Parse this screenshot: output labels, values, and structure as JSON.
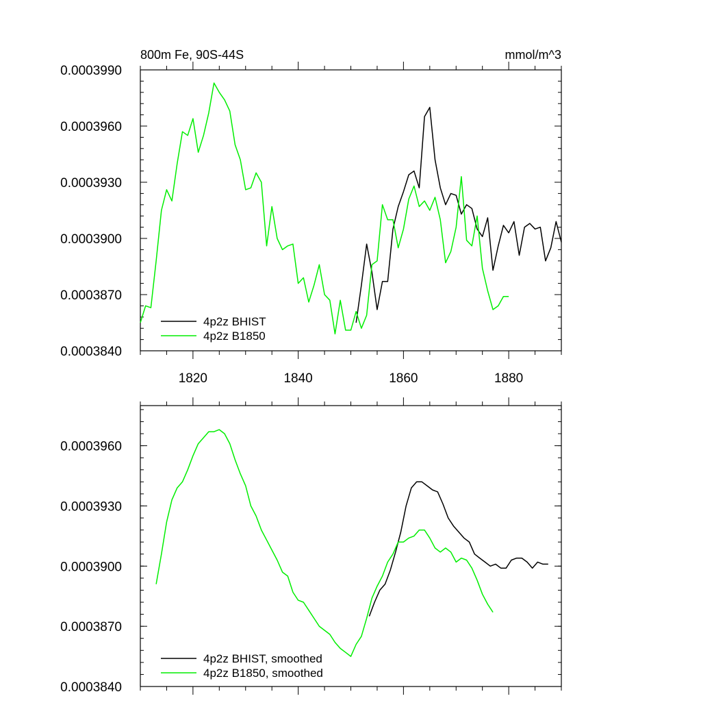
{
  "chart_data": [
    {
      "type": "line",
      "title_left": "800m Fe, 90S-44S",
      "title_right": "mmol/m^3",
      "xlabel": "",
      "ylabel": "",
      "xlim": [
        1810,
        1890
      ],
      "ylim": [
        0.000384,
        0.000399
      ],
      "x_ticks": [
        1820,
        1840,
        1860,
        1880
      ],
      "x_tick_labels": [
        "1820",
        "1840",
        "1860",
        "1880"
      ],
      "y_ticks": [
        0.000384,
        0.000387,
        0.00039,
        0.000393,
        0.000396,
        0.000399
      ],
      "y_tick_labels": [
        "0.0003840",
        "0.0003870",
        "0.0003900",
        "0.0003930",
        "0.0003960",
        "0.0003990"
      ],
      "grid": false,
      "legend_position": "bottom-left",
      "series": [
        {
          "name": "4p2z BHIST",
          "color": "#000000",
          "x": [
            1851,
            1852,
            1853,
            1854,
            1855,
            1856,
            1857,
            1858,
            1859,
            1860,
            1861,
            1862,
            1863,
            1864,
            1865,
            1866,
            1867,
            1868,
            1869,
            1870,
            1871,
            1872,
            1873,
            1874,
            1875,
            1876,
            1877,
            1878,
            1879,
            1880,
            1881,
            1882,
            1883,
            1884,
            1885,
            1886,
            1887,
            1888,
            1889,
            1890
          ],
          "y": [
            0.0003855,
            0.0003875,
            0.0003897,
            0.0003882,
            0.0003862,
            0.0003877,
            0.0003877,
            0.0003905,
            0.0003917,
            0.0003925,
            0.0003934,
            0.0003936,
            0.0003927,
            0.0003965,
            0.000397,
            0.0003942,
            0.0003927,
            0.0003918,
            0.0003924,
            0.0003923,
            0.0003913,
            0.0003918,
            0.0003916,
            0.0003905,
            0.0003901,
            0.0003911,
            0.0003883,
            0.0003896,
            0.0003907,
            0.0003903,
            0.0003909,
            0.0003891,
            0.0003906,
            0.0003908,
            0.0003905,
            0.0003906,
            0.0003888,
            0.0003895,
            0.0003909,
            0.0003898
          ]
        },
        {
          "name": "4p2z B1850",
          "color": "#00ee00",
          "x": [
            1810,
            1811,
            1812,
            1813,
            1814,
            1815,
            1816,
            1817,
            1818,
            1819,
            1820,
            1821,
            1822,
            1823,
            1824,
            1825,
            1826,
            1827,
            1828,
            1829,
            1830,
            1831,
            1832,
            1833,
            1834,
            1835,
            1836,
            1837,
            1838,
            1839,
            1840,
            1841,
            1842,
            1843,
            1844,
            1845,
            1846,
            1847,
            1848,
            1849,
            1850,
            1851,
            1852,
            1853,
            1854,
            1855,
            1856,
            1857,
            1858,
            1859,
            1860,
            1861,
            1862,
            1863,
            1864,
            1865,
            1866,
            1867,
            1868,
            1869,
            1870,
            1871,
            1872,
            1873,
            1874,
            1875,
            1876,
            1877,
            1878,
            1879,
            1880
          ],
          "y": [
            0.0003855,
            0.0003864,
            0.0003863,
            0.0003888,
            0.0003915,
            0.0003926,
            0.000392,
            0.000394,
            0.0003957,
            0.0003955,
            0.0003964,
            0.0003946,
            0.0003955,
            0.0003967,
            0.0003983,
            0.0003978,
            0.0003974,
            0.0003968,
            0.000395,
            0.0003942,
            0.0003926,
            0.0003927,
            0.0003935,
            0.000393,
            0.0003896,
            0.0003917,
            0.00039,
            0.0003894,
            0.0003896,
            0.0003897,
            0.0003876,
            0.0003879,
            0.0003866,
            0.0003875,
            0.0003886,
            0.000387,
            0.0003867,
            0.0003849,
            0.0003867,
            0.0003851,
            0.0003851,
            0.0003861,
            0.0003852,
            0.0003859,
            0.0003886,
            0.0003888,
            0.0003918,
            0.000391,
            0.000391,
            0.0003895,
            0.0003905,
            0.0003921,
            0.0003928,
            0.0003917,
            0.000392,
            0.0003915,
            0.0003922,
            0.000391,
            0.0003887,
            0.0003893,
            0.0003906,
            0.0003933,
            0.0003899,
            0.0003896,
            0.0003912,
            0.0003884,
            0.0003872,
            0.0003862,
            0.0003864,
            0.0003869,
            0.0003869
          ]
        }
      ]
    },
    {
      "type": "line",
      "xlabel": "",
      "ylabel": "",
      "xlim": [
        1810,
        1890
      ],
      "ylim": [
        0.000384,
        0.000398
      ],
      "x_ticks": [
        1820,
        1840,
        1860,
        1880
      ],
      "y_ticks": [
        0.000384,
        0.000387,
        0.00039,
        0.000393,
        0.000396
      ],
      "y_tick_labels": [
        "0.0003840",
        "0.0003870",
        "0.0003900",
        "0.0003930",
        "0.0003960"
      ],
      "grid": false,
      "legend_position": "bottom-left",
      "series": [
        {
          "name": "4p2z BHIST, smoothed",
          "color": "#000000",
          "x": [
            1853.5,
            1854.5,
            1855.5,
            1856.5,
            1857.5,
            1858.5,
            1859.5,
            1860.5,
            1861.5,
            1862.5,
            1863.5,
            1864.5,
            1865.5,
            1866.5,
            1867.5,
            1868.5,
            1869.5,
            1870.5,
            1871.5,
            1872.5,
            1873.5,
            1874.5,
            1875.5,
            1876.5,
            1877.5,
            1878.5,
            1879.5,
            1880.5,
            1881.5,
            1882.5,
            1883.5,
            1884.5,
            1885.5,
            1886.5,
            1887.5
          ],
          "y": [
            0.0003875,
            0.0003882,
            0.0003888,
            0.0003891,
            0.0003898,
            0.0003907,
            0.0003917,
            0.000393,
            0.0003939,
            0.0003942,
            0.0003942,
            0.000394,
            0.0003938,
            0.0003937,
            0.0003931,
            0.0003924,
            0.000392,
            0.0003917,
            0.0003914,
            0.0003912,
            0.0003906,
            0.0003904,
            0.0003902,
            0.00039,
            0.0003901,
            0.0003899,
            0.0003899,
            0.0003903,
            0.0003904,
            0.0003904,
            0.0003902,
            0.0003899,
            0.0003902,
            0.0003901,
            0.0003901
          ]
        },
        {
          "name": "4p2z B1850, smoothed",
          "color": "#00ee00",
          "x": [
            1813,
            1814,
            1815,
            1816,
            1817,
            1818,
            1819,
            1820,
            1821,
            1822,
            1823,
            1824,
            1825,
            1826,
            1827,
            1828,
            1829,
            1830,
            1831,
            1832,
            1833,
            1834,
            1835,
            1836,
            1837,
            1838,
            1839,
            1840,
            1841,
            1842,
            1843,
            1844,
            1845,
            1846,
            1847,
            1848,
            1849,
            1850,
            1851,
            1852,
            1853,
            1854,
            1855,
            1856,
            1857,
            1858,
            1859,
            1860,
            1861,
            1862,
            1863,
            1864,
            1865,
            1866,
            1867,
            1868,
            1869,
            1870,
            1871,
            1872,
            1873,
            1874,
            1875,
            1876,
            1877
          ],
          "y": [
            0.0003891,
            0.0003906,
            0.0003922,
            0.0003933,
            0.0003939,
            0.0003942,
            0.0003948,
            0.0003955,
            0.0003961,
            0.0003964,
            0.0003967,
            0.0003967,
            0.0003968,
            0.0003966,
            0.0003961,
            0.0003953,
            0.0003946,
            0.000394,
            0.000393,
            0.0003925,
            0.0003918,
            0.0003913,
            0.0003908,
            0.0003903,
            0.0003897,
            0.0003895,
            0.0003887,
            0.0003883,
            0.0003882,
            0.0003878,
            0.0003874,
            0.000387,
            0.0003868,
            0.0003866,
            0.0003862,
            0.0003859,
            0.0003857,
            0.0003855,
            0.0003861,
            0.0003865,
            0.0003874,
            0.0003884,
            0.000389,
            0.0003895,
            0.0003902,
            0.0003906,
            0.0003912,
            0.0003912,
            0.0003914,
            0.0003915,
            0.0003918,
            0.0003918,
            0.0003914,
            0.0003909,
            0.0003907,
            0.0003909,
            0.0003907,
            0.0003902,
            0.0003904,
            0.0003903,
            0.0003899,
            0.0003893,
            0.0003886,
            0.0003881,
            0.0003877
          ]
        }
      ]
    }
  ]
}
